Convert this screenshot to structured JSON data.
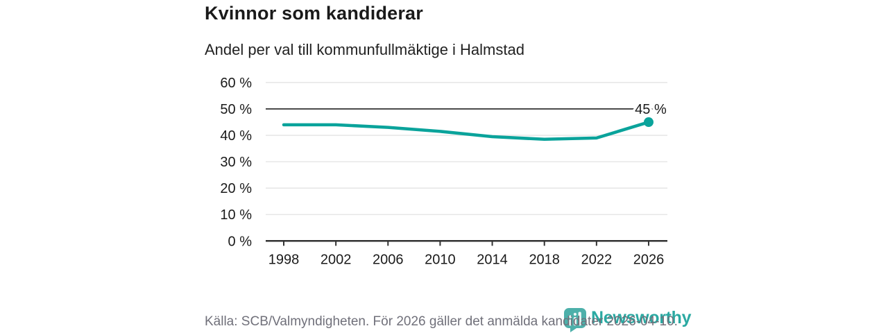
{
  "chart_data": {
    "type": "line",
    "title": "Kvinnor som kandiderar",
    "subtitle": "Andel per val till kommunfullmäktige i Halmstad",
    "x": [
      1998,
      2002,
      2006,
      2010,
      2014,
      2018,
      2022,
      2026
    ],
    "xtick_labels": [
      "1998",
      "2002",
      "2006",
      "2010",
      "2014",
      "2018",
      "2022",
      "2026"
    ],
    "values": [
      44,
      44,
      43,
      41.5,
      39.5,
      38.5,
      39,
      45
    ],
    "unit": "%",
    "ylim": [
      0,
      60
    ],
    "yticks": [
      0,
      10,
      20,
      30,
      40,
      50,
      60
    ],
    "ytick_labels": [
      "0 %",
      "10 %",
      "20 %",
      "30 %",
      "40 %",
      "50 %",
      "60 %"
    ],
    "reference_line": 50,
    "end_label": "45 %",
    "line_color": "#0aa39b",
    "marker": "circle-on-last-point",
    "grid": "horizontal",
    "legend": "none"
  },
  "footer": {
    "source": "Källa: SCB/Valmyndigheten. För 2026 gäller det anmälda kandidater 2026-04-10."
  },
  "branding": {
    "logo_text": "Newsworthy",
    "logo_icon": "newsworthy-speech-bubble-bar-chart",
    "logo_text_color": "#2ba9a2",
    "icon_color": "#4db0aa"
  },
  "colors": {
    "grid": "#e7e7e7",
    "reference": "#4a4a4a",
    "axis": "#333333",
    "text": "#1a1a1a",
    "muted_text": "#70707a",
    "background": "#ffffff"
  }
}
